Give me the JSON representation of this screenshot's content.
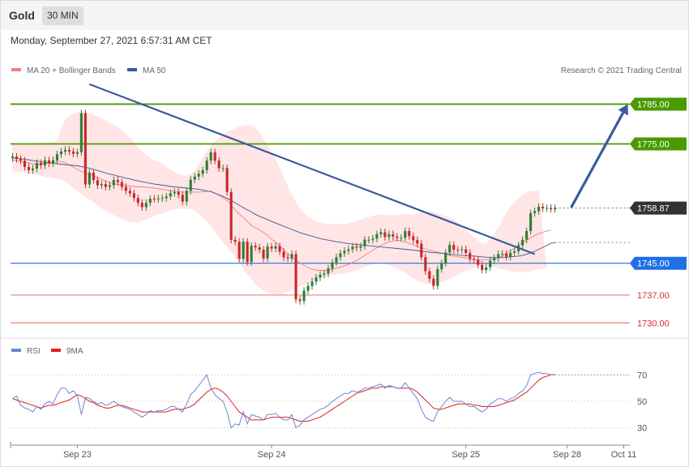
{
  "header": {
    "instrument": "Gold",
    "timeframe": "30 MIN",
    "datetime": "Monday, September 27, 2021 6:57:31 AM CET"
  },
  "legend": {
    "ma20": "MA 20 + Bollinger Bands",
    "ma50": "MA 50",
    "credit": "Research © 2021 Trading Central",
    "rsi": "RSI",
    "ma9": "9MA"
  },
  "colors": {
    "up": "#2e7d32",
    "down": "#c62828",
    "band": "#ffcfcf",
    "ma20": "#f08080",
    "ma50": "#3a5a9a",
    "trend": "#3a5a9a",
    "resistance": "#4a9a00",
    "support": "#1f6fe5",
    "target": "#f08080",
    "current": "#333333",
    "rsi": "#6a86d6",
    "rsi_ma": "#e02020"
  },
  "chart_data": {
    "type": "candlestick",
    "ylim": [
      1727,
      1791
    ],
    "levels": [
      {
        "name": "resistance-1785",
        "label": "1785.00",
        "value": 1785.0,
        "kind": "resistance"
      },
      {
        "name": "resistance-1775",
        "label": "1775.00",
        "value": 1775.0,
        "kind": "resistance"
      },
      {
        "name": "current-price",
        "label": "1758.87",
        "value": 1758.87,
        "kind": "current"
      },
      {
        "name": "support-1745",
        "label": "1745.00",
        "value": 1745.0,
        "kind": "support"
      },
      {
        "name": "target-1737",
        "label": "1737.00",
        "value": 1737.0,
        "kind": "target"
      },
      {
        "name": "target-1730",
        "label": "1730.00",
        "value": 1730.0,
        "kind": "target"
      }
    ],
    "x_ticks": [
      {
        "label": "Sep 23",
        "index": 16
      },
      {
        "label": "Sep 24",
        "index": 64
      },
      {
        "label": "Sep 25",
        "index": 112
      },
      {
        "label": "Sep 28",
        "index": 137
      },
      {
        "label": "Oct 11",
        "index": 151
      }
    ],
    "n_slots": 153,
    "close": [
      1771.8,
      1771.2,
      1770.8,
      1769.2,
      1768.4,
      1768.8,
      1770.2,
      1769.6,
      1770.9,
      1770.1,
      1770.9,
      1772.4,
      1773.1,
      1773.5,
      1773.1,
      1772.5,
      1772.9,
      1782.7,
      1764.8,
      1767.8,
      1765.9,
      1764.6,
      1764.9,
      1764.2,
      1764.6,
      1765.9,
      1765.4,
      1764.2,
      1763.2,
      1762.6,
      1761.4,
      1760.2,
      1759.1,
      1760.2,
      1761.2,
      1761.1,
      1761.3,
      1761.4,
      1761.8,
      1762.6,
      1762.9,
      1762.2,
      1760.5,
      1763.2,
      1766.0,
      1766.8,
      1767.5,
      1768.4,
      1770.8,
      1772.9,
      1770.8,
      1768.9,
      1768.9,
      1762.9,
      1750.9,
      1750.4,
      1746.1,
      1750.4,
      1745.3,
      1749.4,
      1749.0,
      1748.4,
      1746.2,
      1749.2,
      1748.7,
      1749.3,
      1747.9,
      1746.5,
      1746.2,
      1747.3,
      1735.9,
      1735.5,
      1738.1,
      1739.3,
      1740.4,
      1741.4,
      1742.1,
      1742.4,
      1743.7,
      1745.2,
      1746.5,
      1747.5,
      1748.1,
      1748.5,
      1749.2,
      1748.9,
      1749.3,
      1750.9,
      1750.9,
      1751.2,
      1752.3,
      1752.8,
      1751.6,
      1752.3,
      1751.7,
      1751.4,
      1751.4,
      1753.1,
      1751.8,
      1750.8,
      1749.9,
      1746.5,
      1743.0,
      1741.1,
      1739.3,
      1743.5,
      1745.0,
      1747.7,
      1749.6,
      1748.4,
      1748.3,
      1748.5,
      1747.6,
      1746.1,
      1745.9,
      1744.6,
      1743.3,
      1744.0,
      1745.7,
      1746.3,
      1747.3,
      1747.4,
      1746.6,
      1747.6,
      1748.0,
      1749.5,
      1750.9,
      1753.1,
      1757.6,
      1758.1,
      1759.2,
      1758.8,
      1758.9,
      1758.6,
      1758.9
    ],
    "ma20": [
      1771.0,
      1770.8,
      1770.6,
      1770.4,
      1770.2,
      1770.0,
      1769.9,
      1769.9,
      1770.0,
      1770.2,
      1770.4,
      1770.6,
      1770.6,
      1770.3,
      1769.7,
      1769.2,
      1768.6,
      1768.1,
      1767.6,
      1767.3,
      1767.0,
      1766.5,
      1766.1,
      1765.6,
      1765.2,
      1765.0,
      1764.8,
      1764.7,
      1764.5,
      1764.4,
      1764.3,
      1764.2,
      1764.2,
      1764.1,
      1764.0,
      1763.9,
      1763.8,
      1763.6,
      1763.4,
      1763.2,
      1763.1,
      1763.0,
      1762.9,
      1762.9,
      1762.9,
      1762.9,
      1762.9,
      1763.0,
      1763.1,
      1763.1,
      1762.6,
      1762.1,
      1761.5,
      1760.8,
      1759.6,
      1758.4,
      1757.4,
      1756.5,
      1755.5,
      1754.5,
      1753.9,
      1753.4,
      1752.7,
      1752.0,
      1751.0,
      1750.3,
      1749.3,
      1748.3,
      1747.4,
      1746.6,
      1745.7,
      1745.1,
      1744.5,
      1743.9,
      1743.5,
      1743.3,
      1743.2,
      1743.2,
      1743.3,
      1743.5,
      1743.8,
      1744.0,
      1744.4,
      1744.7,
      1745.2,
      1745.7,
      1746.3,
      1747.0,
      1747.6,
      1748.3,
      1748.9,
      1749.5,
      1750.0,
      1750.4,
      1750.6,
      1750.8,
      1750.6,
      1750.3,
      1750.0,
      1749.6,
      1749.2,
      1748.9,
      1748.6,
      1748.3,
      1748.0,
      1747.8,
      1747.6,
      1747.3,
      1747.0,
      1746.8,
      1746.6,
      1746.5,
      1746.3,
      1746.0,
      1745.9,
      1745.8,
      1745.8,
      1745.9,
      1746.0,
      1746.2,
      1746.4,
      1746.9,
      1747.5,
      1748.1,
      1748.8,
      1749.5,
      1750.2,
      1750.8,
      1751.4,
      1752.0,
      1752.4,
      1752.8,
      1753.1,
      1753.3
    ],
    "band_upper": [
      1775.0,
      1775.0,
      1775.0,
      1775.0,
      1775.0,
      1775.0,
      1775.2,
      1775.2,
      1775.3,
      1775.4,
      1775.6,
      1775.8,
      1779.0,
      1781.0,
      1782.0,
      1782.5,
      1783.0,
      1783.2,
      1783.2,
      1782.8,
      1782.3,
      1781.9,
      1781.4,
      1780.9,
      1780.4,
      1779.8,
      1779.2,
      1778.5,
      1777.6,
      1776.6,
      1775.4,
      1774.3,
      1773.2,
      1772.2,
      1771.5,
      1771.0,
      1770.6,
      1770.1,
      1769.3,
      1768.6,
      1768.0,
      1767.5,
      1767.1,
      1767.0,
      1767.4,
      1768.3,
      1769.9,
      1771.6,
      1773.2,
      1774.5,
      1775.6,
      1776.6,
      1777.4,
      1778.0,
      1778.5,
      1778.9,
      1779.3,
      1779.6,
      1779.7,
      1779.7,
      1779.2,
      1777.9,
      1776.4,
      1774.7,
      1772.9,
      1771.0,
      1769.0,
      1766.6,
      1764.3,
      1762.2,
      1760.4,
      1758.8,
      1757.5,
      1756.7,
      1756.1,
      1755.6,
      1755.2,
      1755.0,
      1754.9,
      1754.9,
      1754.9,
      1754.8,
      1754.8,
      1755.1,
      1755.3,
      1755.6,
      1756.0,
      1756.3,
      1756.6,
      1756.9,
      1757.1,
      1757.2,
      1757.2,
      1757.1,
      1757.1,
      1757.1,
      1757.3,
      1757.4,
      1757.2,
      1757.2,
      1757.5,
      1757.8,
      1758.0,
      1758.0,
      1757.8,
      1757.5,
      1757.1,
      1756.8,
      1756.5,
      1756.0,
      1755.2,
      1754.3,
      1753.5,
      1752.5,
      1751.5,
      1750.7,
      1750.0,
      1750.1,
      1751.2,
      1752.5,
      1754.0,
      1755.8,
      1757.7,
      1759.2,
      1760.3,
      1761.4,
      1762.3,
      1762.8,
      1763.2,
      1763.2,
      1763.2
    ],
    "band_lower": [
      1768.0,
      1768.0,
      1767.8,
      1767.8,
      1767.6,
      1767.4,
      1767.2,
      1767.0,
      1766.8,
      1766.6,
      1766.4,
      1766.2,
      1766.1,
      1765.6,
      1764.8,
      1764.0,
      1763.2,
      1762.4,
      1761.6,
      1761.1,
      1760.4,
      1759.6,
      1758.8,
      1758.2,
      1757.6,
      1757.1,
      1756.6,
      1756.1,
      1755.6,
      1755.4,
      1755.2,
      1755.3,
      1755.7,
      1756.0,
      1756.4,
      1756.8,
      1757.2,
      1757.5,
      1757.8,
      1758.3,
      1758.6,
      1758.7,
      1758.7,
      1758.7,
      1758.6,
      1758.2,
      1757.3,
      1756.4,
      1755.4,
      1754.2,
      1752.9,
      1751.6,
      1750.3,
      1749.0,
      1747.8,
      1746.6,
      1745.2,
      1743.7,
      1742.2,
      1741.0,
      1739.8,
      1738.9,
      1738.1,
      1737.6,
      1737.3,
      1737.1,
      1737.1,
      1737.4,
      1737.8,
      1738.2,
      1738.6,
      1739.1,
      1739.6,
      1740.1,
      1740.6,
      1741.0,
      1741.3,
      1741.6,
      1741.8,
      1742.0,
      1742.2,
      1742.3,
      1742.5,
      1742.7,
      1742.9,
      1743.2,
      1743.6,
      1744.1,
      1744.5,
      1744.8,
      1745.0,
      1745.0,
      1744.9,
      1744.5,
      1744.1,
      1743.7,
      1743.2,
      1742.6,
      1741.9,
      1741.2,
      1740.6,
      1740.2,
      1739.9,
      1739.7,
      1739.7,
      1739.9,
      1740.2,
      1740.6,
      1741.0,
      1741.5,
      1742.1,
      1742.6,
      1743.1,
      1743.5,
      1743.9,
      1744.2,
      1744.4,
      1744.4,
      1744.2,
      1744.0,
      1743.7,
      1743.5,
      1743.3,
      1743.1,
      1742.9,
      1742.8,
      1742.8,
      1742.8,
      1742.9,
      1743.2,
      1743.6,
      1743.7,
      1743.7
    ],
    "ma50": [
      1771.5,
      1771.4,
      1771.3,
      1771.1,
      1771.0,
      1770.8,
      1770.7,
      1770.5,
      1770.3,
      1770.2,
      1770.1,
      1770.0,
      1769.9,
      1769.8,
      1769.7,
      1769.6,
      1769.5,
      1769.3,
      1769.1,
      1768.9,
      1768.6,
      1768.3,
      1768.0,
      1767.7,
      1767.4,
      1767.2,
      1766.9,
      1766.7,
      1766.4,
      1766.2,
      1765.9,
      1765.7,
      1765.5,
      1765.3,
      1765.1,
      1764.9,
      1764.8,
      1764.6,
      1764.5,
      1764.3,
      1764.2,
      1764.1,
      1764.0,
      1763.9,
      1763.8,
      1763.7,
      1763.6,
      1763.4,
      1763.2,
      1763.0,
      1762.6,
      1762.2,
      1761.8,
      1761.3,
      1760.8,
      1760.2,
      1759.6,
      1759.0,
      1758.4,
      1757.9,
      1757.3,
      1756.8,
      1756.4,
      1756.0,
      1755.5,
      1755.1,
      1754.7,
      1754.3,
      1753.9,
      1753.5,
      1753.1,
      1752.7,
      1752.4,
      1752.1,
      1751.8,
      1751.5,
      1751.2,
      1751.0,
      1750.8,
      1750.6,
      1750.4,
      1750.3,
      1750.1,
      1749.9,
      1749.8,
      1749.7,
      1749.6,
      1749.5,
      1749.4,
      1749.3,
      1749.2,
      1749.1,
      1749.0,
      1748.9,
      1748.8,
      1748.7,
      1748.6,
      1748.5,
      1748.4,
      1748.3,
      1748.2,
      1748.0,
      1747.9,
      1747.8,
      1747.7,
      1747.6,
      1747.5,
      1747.4,
      1747.3,
      1747.2,
      1747.1,
      1747.0,
      1746.9,
      1746.9,
      1746.8,
      1746.7,
      1746.6,
      1746.5,
      1746.5,
      1746.4,
      1746.4,
      1746.4,
      1746.5,
      1746.6,
      1746.7,
      1746.8,
      1747.0,
      1747.3,
      1747.6,
      1748.0,
      1748.5,
      1749.0,
      1749.5,
      1750.0,
      1750.2
    ],
    "trendline": {
      "start": [
        19,
        1790.0
      ],
      "end": [
        129,
        1747.3
      ]
    },
    "arrow": {
      "start": [
        138,
        1759.0
      ],
      "end": [
        152,
        1785.0
      ]
    },
    "rsi": {
      "ylim": [
        20,
        80
      ],
      "ticks": [
        70,
        50,
        30
      ],
      "rsi": [
        52,
        54,
        47,
        45,
        44,
        42,
        46,
        44,
        48,
        50,
        48,
        55,
        60,
        60,
        56,
        58,
        54,
        40,
        53,
        52,
        50,
        48,
        49,
        47,
        48,
        50,
        48,
        46,
        45,
        44,
        42,
        40,
        38,
        40,
        43,
        42,
        43,
        43,
        44,
        46,
        46,
        44,
        42,
        48,
        55,
        58,
        62,
        66,
        70,
        60,
        55,
        52,
        50,
        42,
        30,
        33,
        32,
        42,
        33,
        40,
        39,
        38,
        36,
        40,
        40,
        41,
        38,
        36,
        36,
        40,
        30,
        32,
        36,
        38,
        40,
        42,
        44,
        45,
        47,
        50,
        52,
        54,
        56,
        56,
        58,
        57,
        58,
        60,
        60,
        61,
        62,
        63,
        60,
        62,
        61,
        60,
        60,
        64,
        60,
        56,
        52,
        44,
        38,
        36,
        35,
        42,
        46,
        50,
        53,
        50,
        50,
        50,
        48,
        46,
        46,
        44,
        42,
        44,
        48,
        50,
        52,
        52,
        50,
        52,
        53,
        56,
        58,
        62,
        70,
        71,
        72,
        71,
        71,
        70,
        70
      ],
      "rsi_ma": [
        52,
        51,
        50,
        49,
        48,
        47,
        46,
        45,
        46,
        47,
        47,
        48,
        49,
        50,
        51,
        53,
        55,
        54,
        52,
        50,
        49,
        47,
        46,
        45,
        45,
        46,
        47,
        47,
        46,
        45,
        44,
        43,
        42,
        42,
        42,
        42,
        42,
        42,
        42,
        43,
        44,
        44,
        44,
        45,
        46,
        48,
        51,
        54,
        57,
        59,
        60,
        59,
        57,
        54,
        50,
        46,
        42,
        40,
        38,
        36,
        36,
        36,
        36,
        37,
        38,
        38,
        38,
        38,
        38,
        37,
        36,
        35,
        35,
        35,
        36,
        37,
        38,
        40,
        42,
        44,
        46,
        48,
        50,
        52,
        54,
        56,
        57,
        58,
        59,
        60,
        60,
        61,
        61,
        61,
        61,
        60,
        60,
        60,
        60,
        59,
        57,
        54,
        51,
        48,
        45,
        44,
        44,
        45,
        46,
        47,
        48,
        48,
        48,
        48,
        47,
        47,
        46,
        46,
        46,
        46,
        47,
        48,
        49,
        50,
        51,
        53,
        55,
        57,
        60,
        63,
        66,
        68,
        69,
        70,
        70
      ]
    }
  }
}
